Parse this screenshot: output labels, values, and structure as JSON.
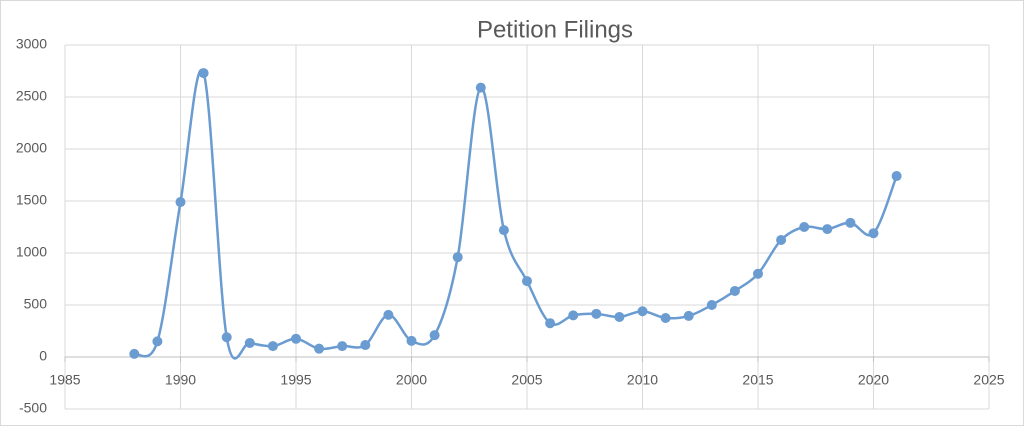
{
  "chart_data": {
    "type": "line",
    "title": "Petition Filings",
    "smooth": true,
    "grid": true,
    "color": "#6a9bd1",
    "x": [
      1988,
      1989,
      1990,
      1991,
      1992,
      1993,
      1994,
      1995,
      1996,
      1997,
      1998,
      1999,
      2000,
      2001,
      2002,
      2003,
      2004,
      2005,
      2006,
      2007,
      2008,
      2009,
      2010,
      2011,
      2012,
      2013,
      2014,
      2015,
      2016,
      2017,
      2018,
      2019,
      2020,
      2021
    ],
    "values": [
      30,
      150,
      1490,
      2730,
      190,
      135,
      105,
      175,
      80,
      105,
      115,
      405,
      155,
      210,
      960,
      2590,
      1220,
      730,
      325,
      400,
      415,
      385,
      440,
      375,
      395,
      500,
      635,
      800,
      1125,
      1250,
      1230,
      1290,
      1190,
      1740
    ],
    "xlim": [
      1985,
      2025
    ],
    "xticks": [
      1985,
      1990,
      1995,
      2000,
      2005,
      2010,
      2015,
      2020,
      2025
    ],
    "ylim": [
      -500,
      3000
    ],
    "yticks": [
      -500,
      0,
      500,
      1000,
      1500,
      2000,
      2500,
      3000
    ]
  }
}
